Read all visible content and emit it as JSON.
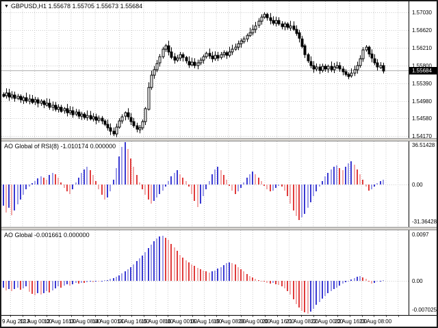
{
  "header": {
    "dropdown_icon": "▼",
    "symbol": "GBPUSD,H1",
    "quote": "1.55678 1.55705 1.55673 1.55684"
  },
  "colors": {
    "background": "#ffffff",
    "frame": "#1a1a1a",
    "grid": "#c9c9c9",
    "bear_candle": "#000000",
    "bull_candle": "#ffffff",
    "wick": "#000000",
    "bid_line": "#b0b0b0",
    "hist_up_dark": "#3838d2",
    "hist_up_light": "#9c9ce8",
    "hist_down_dark": "#e03a3a",
    "hist_down_light": "#f2a8a8",
    "price_tag_bg": "#000000",
    "price_tag_fg": "#ffffff",
    "splitter": "#d6d3ce"
  },
  "price_axis": {
    "labels": [
      "1.57030",
      "1.56620",
      "1.56210",
      "1.55800",
      "1.55390",
      "1.54980",
      "1.54580",
      "1.54170"
    ],
    "current_price": "1.55684"
  },
  "time_axis": {
    "labels": [
      "9 Aug 2013",
      "12 Aug 00:00",
      "12 Aug 16:00",
      "13 Aug 08:00",
      "14 Aug 00:00",
      "14 Aug 16:00",
      "15 Aug 08:00",
      "16 Aug 00:00",
      "16 Aug 16:00",
      "19 Aug 08:00",
      "20 Aug 00:00",
      "20 Aug 16:00",
      "21 Aug 08:00",
      "22 Aug 00:00",
      "22 Aug 16:00",
      "23 Aug 08:00"
    ]
  },
  "chart_data": [
    {
      "type": "candlestick",
      "title": "GBPUSD,H1",
      "ylabels": [
        "1.57030",
        "1.56620",
        "1.56210",
        "1.55800",
        "1.55390",
        "1.54980",
        "1.54580",
        "1.54170"
      ],
      "ylim": [
        1.5408,
        1.5712
      ],
      "current_price": 1.55684,
      "grid": true,
      "closes": [
        1.551,
        1.5516,
        1.5507,
        1.5512,
        1.5504,
        1.5508,
        1.55,
        1.5506,
        1.5498,
        1.5503,
        1.5495,
        1.55,
        1.5492,
        1.5497,
        1.5489,
        1.5493,
        1.5484,
        1.5488,
        1.5479,
        1.5484,
        1.5475,
        1.548,
        1.5471,
        1.5476,
        1.5467,
        1.5472,
        1.5463,
        1.5468,
        1.546,
        1.5465,
        1.5457,
        1.5461,
        1.5453,
        1.5458,
        1.5452,
        1.5444,
        1.5436,
        1.5428,
        1.5422,
        1.5438,
        1.5452,
        1.5462,
        1.547,
        1.546,
        1.545,
        1.544,
        1.5432,
        1.5436,
        1.545,
        1.548,
        1.553,
        1.5558,
        1.557,
        1.5585,
        1.56,
        1.5618,
        1.5626,
        1.5612,
        1.56,
        1.5592,
        1.5597,
        1.5605,
        1.5598,
        1.559,
        1.5582,
        1.5588,
        1.558,
        1.5586,
        1.5592,
        1.56,
        1.5608,
        1.5602,
        1.5596,
        1.5604,
        1.5598,
        1.5605,
        1.561,
        1.5604,
        1.5612,
        1.5618,
        1.5622,
        1.563,
        1.5636,
        1.5642,
        1.565,
        1.5656,
        1.5664,
        1.5672,
        1.5682,
        1.5692,
        1.5698,
        1.569,
        1.5684,
        1.5678,
        1.5684,
        1.5676,
        1.567,
        1.5676,
        1.5668,
        1.5672,
        1.5664,
        1.5655,
        1.5642,
        1.5625,
        1.5605,
        1.559,
        1.558,
        1.5572,
        1.5576,
        1.5568,
        1.5578,
        1.5572,
        1.5578,
        1.557,
        1.5576,
        1.558,
        1.5572,
        1.5566,
        1.556,
        1.5556,
        1.5562,
        1.557,
        1.558,
        1.5596,
        1.5616,
        1.5622,
        1.5606,
        1.5596,
        1.5586,
        1.5576,
        1.558,
        1.5568
      ]
    },
    {
      "type": "bar",
      "title": "AO Global of RSI(8) -1.010174 0.000000",
      "ylabels": [
        "36.51428",
        "0.00",
        "-31.36428"
      ],
      "ylim": [
        -36.6,
        36.6
      ],
      "zero_label": "0.00",
      "grid": true,
      "values": [
        -18,
        -24,
        -20,
        -26,
        -22,
        -17,
        -13,
        -9,
        -4,
        -2,
        1,
        3,
        5,
        7,
        6,
        4,
        8,
        10,
        9,
        6,
        2,
        -3,
        -6,
        -8,
        -4,
        2,
        6,
        10,
        13,
        15,
        12,
        8,
        3,
        -4,
        -9,
        -13,
        -11,
        -6,
        4,
        14,
        24,
        32,
        36,
        30,
        22,
        15,
        8,
        2,
        -4,
        -9,
        -13,
        -16,
        -14,
        -11,
        -8,
        -5,
        -2,
        3,
        7,
        10,
        12,
        9,
        6,
        3,
        -2,
        -8,
        -14,
        -19,
        -16,
        -10,
        -4,
        3,
        9,
        13,
        15,
        12,
        8,
        4,
        -1,
        -5,
        -8,
        -6,
        -3,
        2,
        6,
        9,
        11,
        9,
        6,
        3,
        -1,
        -4,
        -6,
        -5,
        -3,
        -1,
        -2,
        -5,
        -10,
        -16,
        -22,
        -27,
        -30,
        -28,
        -25,
        -20,
        -15,
        -10,
        -6,
        -2,
        3,
        7,
        10,
        13,
        15,
        16,
        14,
        12,
        15,
        18,
        20,
        17,
        13,
        9,
        4,
        -2,
        -5,
        -4,
        -2,
        1,
        3,
        4
      ]
    },
    {
      "type": "bar",
      "title": "AO Global -0.001661 0.000000",
      "ylabels": [
        "0.0097",
        "0.00",
        "-0.007025"
      ],
      "ylim": [
        -0.0075,
        0.0099
      ],
      "zero_label": "0.00",
      "value_scale": 0.0001,
      "grid": true,
      "values": [
        -15,
        -20,
        -17,
        -22,
        -18,
        -14,
        -19,
        -16,
        -12,
        -24,
        -28,
        -31,
        -27,
        -30,
        -26,
        -22,
        -25,
        -20,
        -16,
        -12,
        -14,
        -10,
        -8,
        -10,
        -7,
        -5,
        -6,
        -4,
        -5,
        -3,
        -2,
        -3,
        -1,
        -2,
        -1,
        1,
        2,
        4,
        6,
        9,
        12,
        16,
        20,
        25,
        30,
        36,
        42,
        48,
        55,
        62,
        70,
        78,
        85,
        91,
        95,
        97,
        93,
        88,
        80,
        72,
        64,
        56,
        50,
        44,
        40,
        36,
        32,
        28,
        25,
        22,
        20,
        18,
        20,
        22,
        26,
        30,
        34,
        38,
        40,
        38,
        35,
        30,
        25,
        20,
        15,
        11,
        8,
        5,
        2,
        0,
        -2,
        -4,
        -6,
        -5,
        -7,
        -9,
        -12,
        -16,
        -22,
        -30,
        -40,
        -50,
        -58,
        -64,
        -68,
        -70,
        -66,
        -60,
        -52,
        -45,
        -38,
        -32,
        -27,
        -22,
        -18,
        -14,
        -10,
        -6,
        -3,
        0,
        3,
        6,
        9,
        11,
        8,
        4,
        -2,
        -6,
        -4,
        -2,
        -1,
        1
      ]
    }
  ]
}
